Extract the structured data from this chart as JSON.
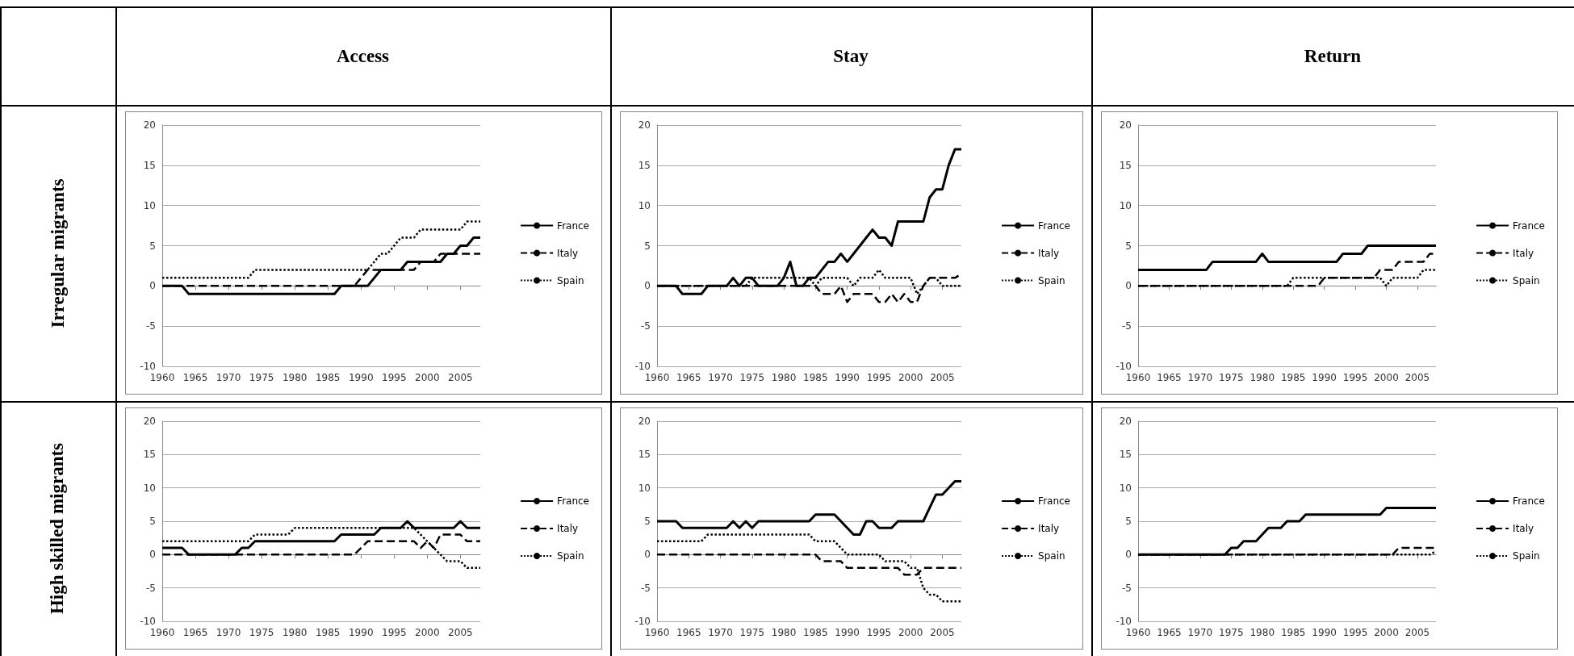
{
  "chart_data": [
    {
      "type": "line",
      "title": "Access",
      "ylabel": "Irregular migrants",
      "legend": "right",
      "grid": "y",
      "marker": "none",
      "xlim": [
        1960,
        2008
      ],
      "xticks": [
        1960,
        1965,
        1970,
        1975,
        1980,
        1985,
        1990,
        1995,
        2000,
        2005
      ],
      "ylim": [
        -10,
        20
      ],
      "yticks": [
        -10,
        -5,
        0,
        5,
        10,
        15,
        20
      ],
      "x": [
        1960,
        1961,
        1962,
        1963,
        1964,
        1965,
        1966,
        1967,
        1968,
        1969,
        1970,
        1971,
        1972,
        1973,
        1974,
        1975,
        1976,
        1977,
        1978,
        1979,
        1980,
        1981,
        1982,
        1983,
        1984,
        1985,
        1986,
        1987,
        1988,
        1989,
        1990,
        1991,
        1992,
        1993,
        1994,
        1995,
        1996,
        1997,
        1998,
        1999,
        2000,
        2001,
        2002,
        2003,
        2004,
        2005,
        2006,
        2007,
        2008
      ],
      "series": [
        {
          "name": "France",
          "color": "#000000",
          "line_style": "solid",
          "values": [
            0,
            0,
            0,
            0,
            -1,
            -1,
            -1,
            -1,
            -1,
            -1,
            -1,
            -1,
            -1,
            -1,
            -1,
            -1,
            -1,
            -1,
            -1,
            -1,
            -1,
            -1,
            -1,
            -1,
            -1,
            -1,
            -1,
            0,
            0,
            0,
            0,
            0,
            1,
            2,
            2,
            2,
            2,
            3,
            3,
            3,
            3,
            3,
            3,
            4,
            4,
            5,
            5,
            6,
            6
          ]
        },
        {
          "name": "Italy",
          "color": "#000000",
          "line_style": "dashed",
          "values": [
            0,
            0,
            0,
            0,
            0,
            0,
            0,
            0,
            0,
            0,
            0,
            0,
            0,
            0,
            0,
            0,
            0,
            0,
            0,
            0,
            0,
            0,
            0,
            0,
            0,
            0,
            0,
            0,
            0,
            0,
            1,
            2,
            2,
            2,
            2,
            2,
            2,
            2,
            2,
            3,
            3,
            3,
            4,
            4,
            4,
            4,
            4,
            4,
            4
          ]
        },
        {
          "name": "Spain",
          "color": "#000000",
          "line_style": "dotted",
          "values": [
            1,
            1,
            1,
            1,
            1,
            1,
            1,
            1,
            1,
            1,
            1,
            1,
            1,
            1,
            2,
            2,
            2,
            2,
            2,
            2,
            2,
            2,
            2,
            2,
            2,
            2,
            2,
            2,
            2,
            2,
            2,
            2,
            3,
            4,
            4,
            5,
            6,
            6,
            6,
            7,
            7,
            7,
            7,
            7,
            7,
            7,
            8,
            8,
            8
          ]
        }
      ]
    },
    {
      "type": "line",
      "title": "Stay",
      "legend": "right",
      "grid": "y",
      "marker": "none",
      "xlim": [
        1960,
        2008
      ],
      "xticks": [
        1960,
        1965,
        1970,
        1975,
        1980,
        1985,
        1990,
        1995,
        2000,
        2005
      ],
      "ylim": [
        -10,
        20
      ],
      "yticks": [
        -10,
        -5,
        0,
        5,
        10,
        15,
        20
      ],
      "x": [
        1960,
        1961,
        1962,
        1963,
        1964,
        1965,
        1966,
        1967,
        1968,
        1969,
        1970,
        1971,
        1972,
        1973,
        1974,
        1975,
        1976,
        1977,
        1978,
        1979,
        1980,
        1981,
        1982,
        1983,
        1984,
        1985,
        1986,
        1987,
        1988,
        1989,
        1990,
        1991,
        1992,
        1993,
        1994,
        1995,
        1996,
        1997,
        1998,
        1999,
        2000,
        2001,
        2002,
        2003,
        2004,
        2005,
        2006,
        2007,
        2008
      ],
      "series": [
        {
          "name": "France",
          "color": "#000000",
          "line_style": "solid",
          "values": [
            0,
            0,
            0,
            0,
            -1,
            -1,
            -1,
            -1,
            0,
            0,
            0,
            0,
            1,
            0,
            1,
            1,
            0,
            0,
            0,
            0,
            1,
            3,
            0,
            0,
            1,
            1,
            2,
            3,
            3,
            4,
            3,
            4,
            5,
            6,
            7,
            6,
            6,
            5,
            8,
            8,
            8,
            8,
            8,
            11,
            12,
            12,
            15,
            17,
            17
          ]
        },
        {
          "name": "Italy",
          "color": "#000000",
          "line_style": "dashed",
          "values": [
            0,
            0,
            0,
            0,
            0,
            0,
            0,
            0,
            0,
            0,
            0,
            0,
            0,
            0,
            0,
            0,
            0,
            0,
            0,
            0,
            0,
            0,
            0,
            0,
            0,
            0,
            -1,
            -1,
            -1,
            0,
            -2,
            -1,
            -1,
            -1,
            -1,
            -2,
            -2,
            -1,
            -2,
            -1,
            -2,
            -2,
            0,
            1,
            1,
            1,
            1,
            1,
            1.5
          ]
        },
        {
          "name": "Spain",
          "color": "#000000",
          "line_style": "dotted",
          "values": [
            0,
            0,
            0,
            0,
            0,
            0,
            0,
            0,
            0,
            0,
            0,
            0,
            0,
            0,
            0,
            1,
            1,
            1,
            1,
            1,
            1,
            1,
            1,
            1,
            1,
            0,
            1,
            1,
            1,
            1,
            1,
            0,
            1,
            1,
            1,
            2,
            1,
            1,
            1,
            1,
            1,
            -1,
            0,
            1,
            1,
            0,
            0,
            0,
            0
          ]
        }
      ]
    },
    {
      "type": "line",
      "title": "Return",
      "legend": "right",
      "grid": "y",
      "marker": "none",
      "xlim": [
        1960,
        2008
      ],
      "xticks": [
        1960,
        1965,
        1970,
        1975,
        1980,
        1985,
        1990,
        1995,
        2000,
        2005
      ],
      "ylim": [
        -10,
        20
      ],
      "yticks": [
        -10,
        -5,
        0,
        5,
        10,
        15,
        20
      ],
      "x": [
        1960,
        1961,
        1962,
        1963,
        1964,
        1965,
        1966,
        1967,
        1968,
        1969,
        1970,
        1971,
        1972,
        1973,
        1974,
        1975,
        1976,
        1977,
        1978,
        1979,
        1980,
        1981,
        1982,
        1983,
        1984,
        1985,
        1986,
        1987,
        1988,
        1989,
        1990,
        1991,
        1992,
        1993,
        1994,
        1995,
        1996,
        1997,
        1998,
        1999,
        2000,
        2001,
        2002,
        2003,
        2004,
        2005,
        2006,
        2007,
        2008
      ],
      "series": [
        {
          "name": "France",
          "color": "#000000",
          "line_style": "solid",
          "values": [
            2,
            2,
            2,
            2,
            2,
            2,
            2,
            2,
            2,
            2,
            2,
            2,
            3,
            3,
            3,
            3,
            3,
            3,
            3,
            3,
            4,
            3,
            3,
            3,
            3,
            3,
            3,
            3,
            3,
            3,
            3,
            3,
            3,
            4,
            4,
            4,
            4,
            5,
            5,
            5,
            5,
            5,
            5,
            5,
            5,
            5,
            5,
            5,
            5
          ]
        },
        {
          "name": "Italy",
          "color": "#000000",
          "line_style": "dashed",
          "values": [
            0,
            0,
            0,
            0,
            0,
            0,
            0,
            0,
            0,
            0,
            0,
            0,
            0,
            0,
            0,
            0,
            0,
            0,
            0,
            0,
            0,
            0,
            0,
            0,
            0,
            0,
            0,
            0,
            0,
            0,
            1,
            1,
            1,
            1,
            1,
            1,
            1,
            1,
            1,
            2,
            2,
            2,
            3,
            3,
            3,
            3,
            3,
            4,
            4
          ]
        },
        {
          "name": "Spain",
          "color": "#000000",
          "line_style": "dotted",
          "values": [
            0,
            0,
            0,
            0,
            0,
            0,
            0,
            0,
            0,
            0,
            0,
            0,
            0,
            0,
            0,
            0,
            0,
            0,
            0,
            0,
            0,
            0,
            0,
            0,
            0,
            1,
            1,
            1,
            1,
            1,
            1,
            1,
            1,
            1,
            1,
            1,
            1,
            1,
            1,
            1,
            0,
            1,
            1,
            1,
            1,
            1,
            2,
            2,
            2
          ]
        }
      ]
    },
    {
      "type": "line",
      "ylabel": "High skilled migrants",
      "legend": "right",
      "grid": "y",
      "marker": "none",
      "xlim": [
        1960,
        2008
      ],
      "xticks": [
        1960,
        1965,
        1970,
        1975,
        1980,
        1985,
        1990,
        1995,
        2000,
        2005
      ],
      "ylim": [
        -10,
        20
      ],
      "yticks": [
        -10,
        -5,
        0,
        5,
        10,
        15,
        20
      ],
      "x": [
        1960,
        1961,
        1962,
        1963,
        1964,
        1965,
        1966,
        1967,
        1968,
        1969,
        1970,
        1971,
        1972,
        1973,
        1974,
        1975,
        1976,
        1977,
        1978,
        1979,
        1980,
        1981,
        1982,
        1983,
        1984,
        1985,
        1986,
        1987,
        1988,
        1989,
        1990,
        1991,
        1992,
        1993,
        1994,
        1995,
        1996,
        1997,
        1998,
        1999,
        2000,
        2001,
        2002,
        2003,
        2004,
        2005,
        2006,
        2007,
        2008
      ],
      "series": [
        {
          "name": "France",
          "color": "#000000",
          "line_style": "solid",
          "values": [
            1,
            1,
            1,
            1,
            0,
            0,
            0,
            0,
            0,
            0,
            0,
            0,
            1,
            1,
            2,
            2,
            2,
            2,
            2,
            2,
            2,
            2,
            2,
            2,
            2,
            2,
            2,
            3,
            3,
            3,
            3,
            3,
            3,
            4,
            4,
            4,
            4,
            5,
            4,
            4,
            4,
            4,
            4,
            4,
            4,
            5,
            4,
            4,
            4
          ]
        },
        {
          "name": "Italy",
          "color": "#000000",
          "line_style": "dashed",
          "values": [
            0,
            0,
            0,
            0,
            0,
            0,
            0,
            0,
            0,
            0,
            0,
            0,
            0,
            0,
            0,
            0,
            0,
            0,
            0,
            0,
            0,
            0,
            0,
            0,
            0,
            0,
            0,
            0,
            0,
            0,
            1,
            2,
            2,
            2,
            2,
            2,
            2,
            2,
            2,
            1,
            2,
            1,
            3,
            3,
            3,
            3,
            2,
            2,
            2
          ]
        },
        {
          "name": "Spain",
          "color": "#000000",
          "line_style": "dotted",
          "values": [
            2,
            2,
            2,
            2,
            2,
            2,
            2,
            2,
            2,
            2,
            2,
            2,
            2,
            2,
            3,
            3,
            3,
            3,
            3,
            3,
            4,
            4,
            4,
            4,
            4,
            4,
            4,
            4,
            4,
            4,
            4,
            4,
            4,
            4,
            4,
            4,
            4,
            4,
            4,
            3,
            2,
            1,
            0,
            -1,
            -1,
            -1,
            -2,
            -2,
            -2
          ]
        }
      ]
    },
    {
      "type": "line",
      "legend": "right",
      "grid": "y",
      "marker": "none",
      "xlim": [
        1960,
        2008
      ],
      "xticks": [
        1960,
        1965,
        1970,
        1975,
        1980,
        1985,
        1990,
        1995,
        2000,
        2005
      ],
      "ylim": [
        -10,
        20
      ],
      "yticks": [
        -10,
        -5,
        0,
        5,
        10,
        15,
        20
      ],
      "x": [
        1960,
        1961,
        1962,
        1963,
        1964,
        1965,
        1966,
        1967,
        1968,
        1969,
        1970,
        1971,
        1972,
        1973,
        1974,
        1975,
        1976,
        1977,
        1978,
        1979,
        1980,
        1981,
        1982,
        1983,
        1984,
        1985,
        1986,
        1987,
        1988,
        1989,
        1990,
        1991,
        1992,
        1993,
        1994,
        1995,
        1996,
        1997,
        1998,
        1999,
        2000,
        2001,
        2002,
        2003,
        2004,
        2005,
        2006,
        2007,
        2008
      ],
      "series": [
        {
          "name": "France",
          "color": "#000000",
          "line_style": "solid",
          "values": [
            5,
            5,
            5,
            5,
            4,
            4,
            4,
            4,
            4,
            4,
            4,
            4,
            5,
            4,
            5,
            4,
            5,
            5,
            5,
            5,
            5,
            5,
            5,
            5,
            5,
            6,
            6,
            6,
            6,
            5,
            4,
            3,
            3,
            5,
            5,
            4,
            4,
            4,
            5,
            5,
            5,
            5,
            5,
            7,
            9,
            9,
            10,
            11,
            11
          ]
        },
        {
          "name": "Italy",
          "color": "#000000",
          "line_style": "dashed",
          "values": [
            0,
            0,
            0,
            0,
            0,
            0,
            0,
            0,
            0,
            0,
            0,
            0,
            0,
            0,
            0,
            0,
            0,
            0,
            0,
            0,
            0,
            0,
            0,
            0,
            0,
            0,
            -1,
            -1,
            -1,
            -1,
            -2,
            -2,
            -2,
            -2,
            -2,
            -2,
            -2,
            -2,
            -2,
            -3,
            -3,
            -3,
            -2,
            -2,
            -2,
            -2,
            -2,
            -2,
            -2
          ]
        },
        {
          "name": "Spain",
          "color": "#000000",
          "line_style": "dotted",
          "values": [
            2,
            2,
            2,
            2,
            2,
            2,
            2,
            2,
            3,
            3,
            3,
            3,
            3,
            3,
            3,
            3,
            3,
            3,
            3,
            3,
            3,
            3,
            3,
            3,
            3,
            2,
            2,
            2,
            2,
            1,
            0,
            0,
            0,
            0,
            0,
            0,
            -1,
            -1,
            -1,
            -1,
            -2,
            -2,
            -5,
            -6,
            -6,
            -7,
            -7,
            -7,
            -7
          ]
        }
      ]
    },
    {
      "type": "line",
      "legend": "right",
      "grid": "y",
      "marker": "none",
      "xlim": [
        1960,
        2008
      ],
      "xticks": [
        1960,
        1965,
        1970,
        1975,
        1980,
        1985,
        1990,
        1995,
        2000,
        2005
      ],
      "ylim": [
        -10,
        20
      ],
      "yticks": [
        -10,
        -5,
        0,
        5,
        10,
        15,
        20
      ],
      "x": [
        1960,
        1961,
        1962,
        1963,
        1964,
        1965,
        1966,
        1967,
        1968,
        1969,
        1970,
        1971,
        1972,
        1973,
        1974,
        1975,
        1976,
        1977,
        1978,
        1979,
        1980,
        1981,
        1982,
        1983,
        1984,
        1985,
        1986,
        1987,
        1988,
        1989,
        1990,
        1991,
        1992,
        1993,
        1994,
        1995,
        1996,
        1997,
        1998,
        1999,
        2000,
        2001,
        2002,
        2003,
        2004,
        2005,
        2006,
        2007,
        2008
      ],
      "series": [
        {
          "name": "France",
          "color": "#000000",
          "line_style": "solid",
          "values": [
            0,
            0,
            0,
            0,
            0,
            0,
            0,
            0,
            0,
            0,
            0,
            0,
            0,
            0,
            0,
            1,
            1,
            2,
            2,
            2,
            3,
            4,
            4,
            4,
            5,
            5,
            5,
            6,
            6,
            6,
            6,
            6,
            6,
            6,
            6,
            6,
            6,
            6,
            6,
            6,
            7,
            7,
            7,
            7,
            7,
            7,
            7,
            7,
            7
          ]
        },
        {
          "name": "Italy",
          "color": "#000000",
          "line_style": "dashed",
          "values": [
            0,
            0,
            0,
            0,
            0,
            0,
            0,
            0,
            0,
            0,
            0,
            0,
            0,
            0,
            0,
            0,
            0,
            0,
            0,
            0,
            0,
            0,
            0,
            0,
            0,
            0,
            0,
            0,
            0,
            0,
            0,
            0,
            0,
            0,
            0,
            0,
            0,
            0,
            0,
            0,
            0,
            0,
            1,
            1,
            1,
            1,
            1,
            1,
            1
          ]
        },
        {
          "name": "Spain",
          "color": "#000000",
          "line_style": "dotted",
          "values": [
            0,
            0,
            0,
            0,
            0,
            0,
            0,
            0,
            0,
            0,
            0,
            0,
            0,
            0,
            0,
            0,
            0,
            0,
            0,
            0,
            0,
            0,
            0,
            0,
            0,
            0,
            0,
            0,
            0,
            0,
            0,
            0,
            0,
            0,
            0,
            0,
            0,
            0,
            0,
            0,
            0,
            0,
            0,
            0,
            0,
            0,
            0,
            0,
            0.5
          ]
        }
      ]
    }
  ]
}
